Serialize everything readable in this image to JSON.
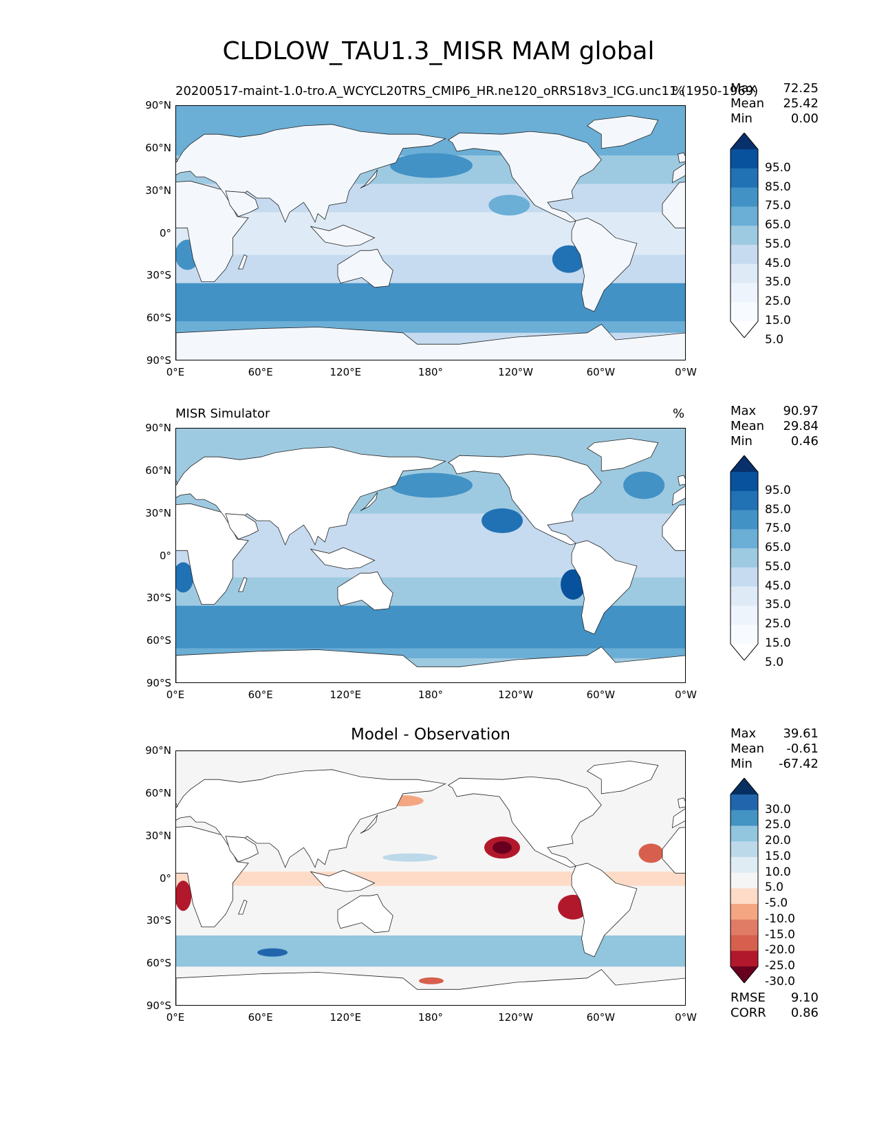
{
  "title": "CLDLOW_TAU1.3_MISR MAM global",
  "lat_ticks": [
    "90°N",
    "60°N",
    "30°N",
    "0°",
    "30°S",
    "60°S",
    "90°S"
  ],
  "lon_ticks": [
    "0°E",
    "60°E",
    "120°E",
    "180°",
    "120°W",
    "60°W",
    "0°W"
  ],
  "panels": [
    {
      "left_title": "20200517-maint-1.0-tro.A_WCYCL20TRS_CMIP6_HR.ne120_oRRS18v3_ICG.unc11 (1950-1969)",
      "center_title": "",
      "units": "%",
      "stats": {
        "max_label": "Max",
        "max": "72.25",
        "mean_label": "Mean",
        "mean": "25.42",
        "min_label": "Min",
        "min": "0.00"
      },
      "colorbar": {
        "levels": [
          "95.0",
          "85.0",
          "75.0",
          "65.0",
          "55.0",
          "45.0",
          "35.0",
          "25.0",
          "15.0",
          "5.0"
        ],
        "colors": [
          "#08306b",
          "#08519c",
          "#2171b5",
          "#4292c6",
          "#6baed6",
          "#9ecae1",
          "#c6dbef",
          "#deebf7",
          "#eef4fb",
          "#f7fbff",
          "#ffffff"
        ]
      }
    },
    {
      "left_title": "MISR Simulator",
      "center_title": "",
      "units": "%",
      "stats": {
        "max_label": "Max",
        "max": "90.97",
        "mean_label": "Mean",
        "mean": "29.84",
        "min_label": "Min",
        "min": "0.46"
      },
      "colorbar": {
        "levels": [
          "95.0",
          "85.0",
          "75.0",
          "65.0",
          "55.0",
          "45.0",
          "35.0",
          "25.0",
          "15.0",
          "5.0"
        ],
        "colors": [
          "#08306b",
          "#08519c",
          "#2171b5",
          "#4292c6",
          "#6baed6",
          "#9ecae1",
          "#c6dbef",
          "#deebf7",
          "#eef4fb",
          "#f7fbff",
          "#ffffff"
        ]
      }
    },
    {
      "left_title": "",
      "center_title": "Model - Observation",
      "units": "",
      "stats": {
        "max_label": "Max",
        "max": "39.61",
        "mean_label": "Mean",
        "mean": "-0.61",
        "min_label": "Min",
        "min": "-67.42"
      },
      "colorbar": {
        "levels": [
          "30.0",
          "25.0",
          "20.0",
          "15.0",
          "10.0",
          "5.0",
          "-5.0",
          "-10.0",
          "-15.0",
          "-20.0",
          "-25.0",
          "-30.0"
        ],
        "colors": [
          "#053061",
          "#2166ac",
          "#4393c3",
          "#92c5de",
          "#bcd9ea",
          "#e0ecf4",
          "#f5f5f5",
          "#fddbc7",
          "#f4a582",
          "#e07b66",
          "#d6604d",
          "#b2182b",
          "#67001f"
        ]
      },
      "extra_stats": {
        "rmse_label": "RMSE",
        "rmse": "9.10",
        "corr_label": "CORR",
        "corr": "0.86"
      }
    }
  ]
}
